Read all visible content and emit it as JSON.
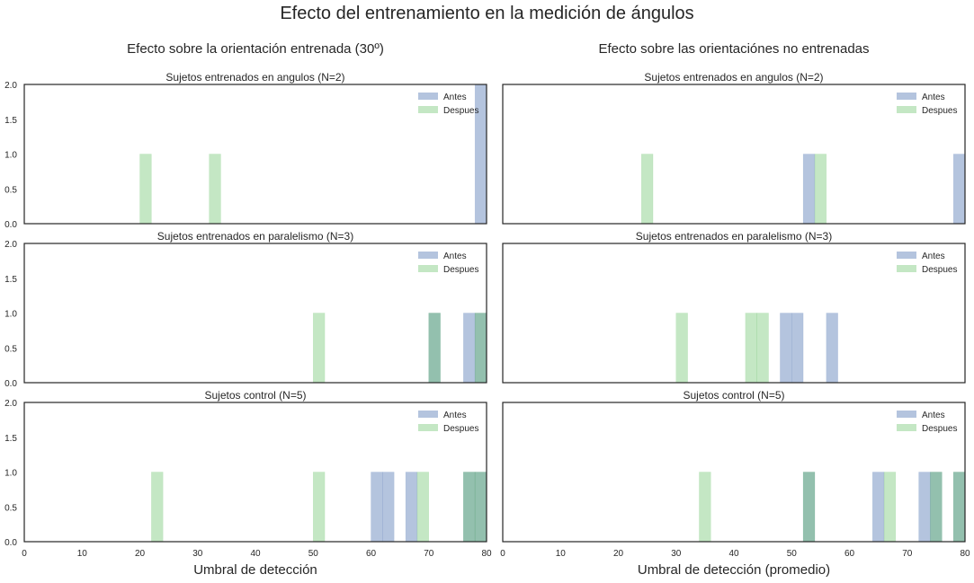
{
  "suptitle": "Efecto del entrenamiento en la medición de ángulos",
  "columns": [
    {
      "title": "Efecto sobre la orientación entrenada (30º)",
      "xlabel": "Umbral de detección"
    },
    {
      "title": "Efecto sobre las orientaciónes no entrenadas",
      "xlabel": "Umbral de detección (promedio)"
    }
  ],
  "legend": {
    "antes": "Antes",
    "despues": "Despues"
  },
  "colors": {
    "antes": "#4c72b0",
    "despues": "#55bb55",
    "frame": "#262626"
  },
  "chart_data": [
    {
      "type": "histogram",
      "title": "Sujetos entrenados en angulos (N=2)",
      "xlim": [
        0,
        80
      ],
      "ylim": [
        0,
        2
      ],
      "grid": false,
      "legend_position": "top-right",
      "bin_width": 2,
      "series": [
        {
          "name": "Antes",
          "bins": [
            {
              "x": 78,
              "count": 2
            }
          ]
        },
        {
          "name": "Despues",
          "bins": [
            {
              "x": 20,
              "count": 1
            },
            {
              "x": 32,
              "count": 1
            }
          ]
        }
      ]
    },
    {
      "type": "histogram",
      "title": "Sujetos entrenados en angulos (N=2)",
      "xlim": [
        0,
        80
      ],
      "ylim": [
        0,
        2
      ],
      "grid": false,
      "legend_position": "top-right",
      "bin_width": 2,
      "series": [
        {
          "name": "Antes",
          "bins": [
            {
              "x": 52,
              "count": 1
            },
            {
              "x": 78,
              "count": 1
            }
          ]
        },
        {
          "name": "Despues",
          "bins": [
            {
              "x": 24,
              "count": 1
            },
            {
              "x": 54,
              "count": 1
            }
          ]
        }
      ]
    },
    {
      "type": "histogram",
      "title": "Sujetos entrenados en paralelismo (N=3)",
      "xlim": [
        0,
        80
      ],
      "ylim": [
        0,
        2
      ],
      "grid": false,
      "legend_position": "top-right",
      "bin_width": 2,
      "series": [
        {
          "name": "Antes",
          "bins": [
            {
              "x": 70,
              "count": 1
            },
            {
              "x": 76,
              "count": 1
            },
            {
              "x": 78,
              "count": 1
            }
          ]
        },
        {
          "name": "Despues",
          "bins": [
            {
              "x": 50,
              "count": 1
            },
            {
              "x": 70,
              "count": 1
            },
            {
              "x": 78,
              "count": 1
            }
          ]
        }
      ]
    },
    {
      "type": "histogram",
      "title": "Sujetos entrenados en paralelismo (N=3)",
      "xlim": [
        0,
        80
      ],
      "ylim": [
        0,
        2
      ],
      "grid": false,
      "legend_position": "top-right",
      "bin_width": 2,
      "series": [
        {
          "name": "Antes",
          "bins": [
            {
              "x": 48,
              "count": 1
            },
            {
              "x": 50,
              "count": 1
            },
            {
              "x": 56,
              "count": 1
            }
          ]
        },
        {
          "name": "Despues",
          "bins": [
            {
              "x": 30,
              "count": 1
            },
            {
              "x": 42,
              "count": 1
            },
            {
              "x": 44,
              "count": 1
            }
          ]
        }
      ]
    },
    {
      "type": "histogram",
      "title": "Sujetos control (N=5)",
      "xlim": [
        0,
        80
      ],
      "ylim": [
        0,
        2
      ],
      "grid": false,
      "legend_position": "top-right",
      "bin_width": 2,
      "series": [
        {
          "name": "Antes",
          "bins": [
            {
              "x": 60,
              "count": 1
            },
            {
              "x": 62,
              "count": 1
            },
            {
              "x": 66,
              "count": 1
            },
            {
              "x": 76,
              "count": 1
            },
            {
              "x": 78,
              "count": 1
            }
          ]
        },
        {
          "name": "Despues",
          "bins": [
            {
              "x": 22,
              "count": 1
            },
            {
              "x": 50,
              "count": 1
            },
            {
              "x": 68,
              "count": 1
            },
            {
              "x": 76,
              "count": 1
            },
            {
              "x": 78,
              "count": 1
            }
          ]
        }
      ]
    },
    {
      "type": "histogram",
      "title": "Sujetos control (N=5)",
      "xlim": [
        0,
        80
      ],
      "ylim": [
        0,
        2
      ],
      "grid": false,
      "legend_position": "top-right",
      "bin_width": 2,
      "series": [
        {
          "name": "Antes",
          "bins": [
            {
              "x": 52,
              "count": 1
            },
            {
              "x": 64,
              "count": 1
            },
            {
              "x": 72,
              "count": 1
            },
            {
              "x": 74,
              "count": 1
            },
            {
              "x": 78,
              "count": 1
            }
          ]
        },
        {
          "name": "Despues",
          "bins": [
            {
              "x": 34,
              "count": 1
            },
            {
              "x": 52,
              "count": 1
            },
            {
              "x": 66,
              "count": 1
            },
            {
              "x": 74,
              "count": 1
            },
            {
              "x": 78,
              "count": 1
            }
          ]
        }
      ]
    }
  ],
  "axes": {
    "yticks": [
      "0.0",
      "0.5",
      "1.0",
      "1.5",
      "2.0"
    ],
    "xticks": [
      "0",
      "10",
      "20",
      "30",
      "40",
      "50",
      "60",
      "70",
      "80"
    ]
  }
}
